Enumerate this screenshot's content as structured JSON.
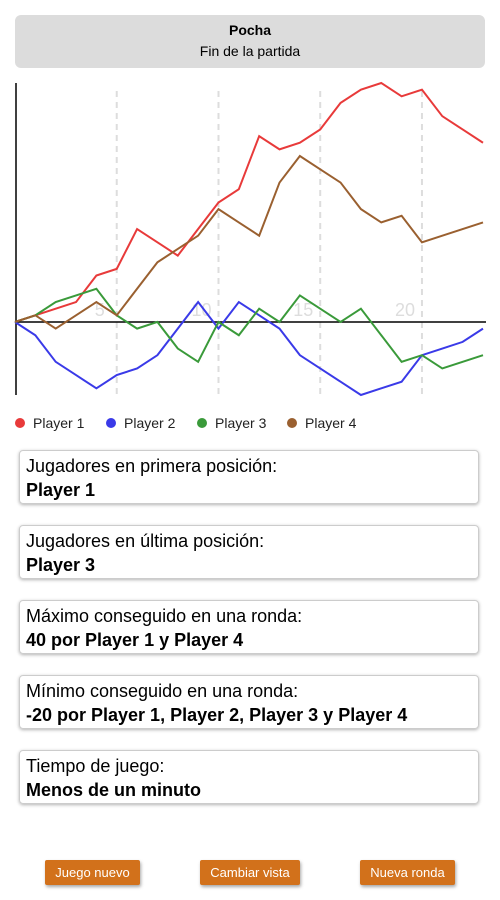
{
  "header": {
    "title": "Pocha",
    "subtitle": "Fin de la partida"
  },
  "chart_data": {
    "type": "line",
    "x": [
      0,
      1,
      2,
      3,
      4,
      5,
      6,
      7,
      8,
      9,
      10,
      11,
      12,
      13,
      14,
      15,
      16,
      17,
      18,
      19,
      20,
      21,
      22,
      23
    ],
    "xlim": [
      0,
      23
    ],
    "xticks": [
      5,
      10,
      15,
      20
    ],
    "ylim": [
      -55,
      180
    ],
    "grid": true,
    "legend": "bottom",
    "series": [
      {
        "name": "Player 1",
        "color": "#e83a3a",
        "values": [
          0,
          5,
          10,
          15,
          35,
          40,
          70,
          60,
          50,
          70,
          90,
          100,
          140,
          130,
          135,
          145,
          165,
          175,
          180,
          170,
          175,
          155,
          145,
          135
        ]
      },
      {
        "name": "Player 2",
        "color": "#3a3ae8",
        "values": [
          0,
          -10,
          -30,
          -40,
          -50,
          -40,
          -35,
          -25,
          -5,
          15,
          -5,
          15,
          5,
          -5,
          -25,
          -35,
          -45,
          -55,
          -50,
          -45,
          -25,
          -20,
          -15,
          -5
        ]
      },
      {
        "name": "Player 3",
        "color": "#3a9a3a",
        "values": [
          0,
          5,
          15,
          20,
          25,
          5,
          -5,
          0,
          -20,
          -30,
          0,
          -10,
          10,
          0,
          20,
          10,
          0,
          10,
          -10,
          -30,
          -25,
          -35,
          -30,
          -25
        ]
      },
      {
        "name": "Player 4",
        "color": "#9a6030",
        "values": [
          0,
          5,
          -5,
          5,
          15,
          5,
          25,
          45,
          55,
          65,
          85,
          75,
          65,
          105,
          125,
          115,
          105,
          85,
          75,
          80,
          60,
          65,
          70,
          75
        ]
      }
    ]
  },
  "cards": [
    {
      "label": "Jugadores en primera posición:",
      "value": "Player 1"
    },
    {
      "label": "Jugadores en última posición:",
      "value": "Player 3"
    },
    {
      "label": "Máximo conseguido en una ronda:",
      "value": "40 por Player 1 y Player 4"
    },
    {
      "label": "Mínimo conseguido en una ronda:",
      "value": "-20 por Player 1, Player 2, Player 3 y Player 4"
    },
    {
      "label": "Tiempo de juego:",
      "value": "Menos de un minuto"
    }
  ],
  "buttons": [
    "Juego nuevo",
    "Cambiar vista",
    "Nueva ronda"
  ]
}
